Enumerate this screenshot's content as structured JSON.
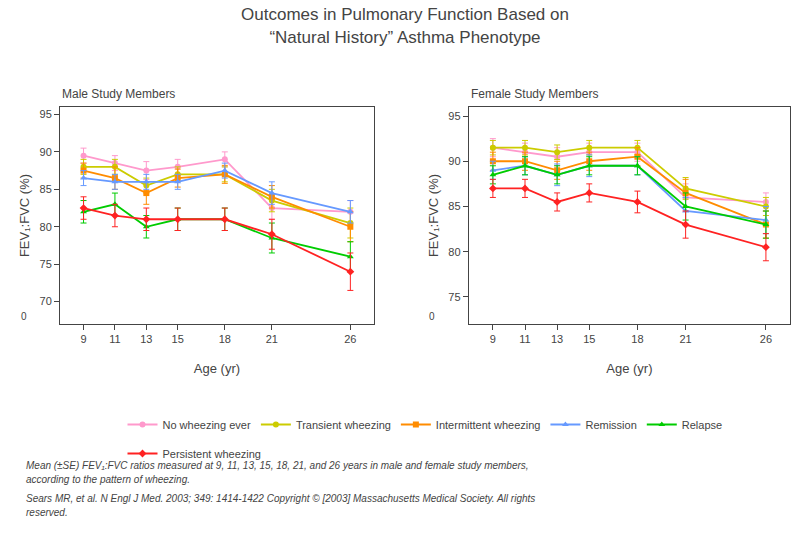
{
  "title": "Outcomes in Pulmonary Function Based on\n“Natural History” Asthma Phenotype",
  "annotations": [
    "Mean (±SE) FEV₁:FVC ratios measured at 9, 11, 13, 15, 18, 21, and 26 years in male and female study members,",
    "according to the pattern of wheezing.",
    "Sears MR, et al. N Engl J Med. 2003; 349: 1414-1422 Copyright © [2003] Massachusetts Medical Society. All rights",
    "reserved."
  ],
  "chart_data": [
    {
      "type": "line",
      "title": "Male Study Members",
      "xlabel": "Age (yr)",
      "ylabel": "FEV₁:FVC (%)",
      "x": [
        9,
        11,
        13,
        15,
        18,
        21,
        26
      ],
      "xlim": [
        7.5,
        27.5
      ],
      "xticks": [
        9,
        11,
        13,
        15,
        18,
        21,
        26
      ],
      "ylim": [
        67,
        96
      ],
      "yticks": [
        70,
        75,
        80,
        85,
        90,
        95
      ],
      "grid": false,
      "legend": "bottom",
      "annotations": [
        "0"
      ],
      "series": [
        {
          "name": "No wheezing ever",
          "color": "#FF99CC",
          "marker": "circle",
          "line_style": "solid",
          "values": [
            89.5,
            88.5,
            87.5,
            88.0,
            89.0,
            82.5,
            82.0
          ],
          "errors": [
            1.0,
            1.0,
            1.2,
            1.0,
            1.0,
            1.5,
            1.5
          ]
        },
        {
          "name": "Transient wheezing",
          "color": "#CCCC00",
          "marker": "circle",
          "line_style": "solid",
          "values": [
            88.0,
            88.0,
            85.5,
            87.0,
            87.0,
            83.5,
            80.5
          ],
          "errors": [
            1.0,
            1.0,
            1.0,
            1.0,
            1.0,
            1.5,
            2.0
          ]
        },
        {
          "name": "Intermittent wheezing",
          "color": "#FF8C00",
          "marker": "square",
          "line_style": "solid",
          "values": [
            87.5,
            86.5,
            84.5,
            86.5,
            87.0,
            84.0,
            80.0
          ],
          "errors": [
            1.0,
            1.5,
            1.5,
            1.2,
            1.2,
            1.5,
            2.0
          ]
        },
        {
          "name": "Remission",
          "color": "#6699FF",
          "marker": "triangle-up",
          "line_style": "solid",
          "values": [
            86.5,
            86.0,
            86.0,
            86.0,
            87.5,
            84.5,
            82.0
          ],
          "errors": [
            1.0,
            1.0,
            1.0,
            1.0,
            1.0,
            1.5,
            1.5
          ]
        },
        {
          "name": "Relapse",
          "color": "#00CC00",
          "marker": "triangle-up",
          "line_style": "solid",
          "values": [
            82.0,
            83.0,
            80.0,
            81.0,
            81.0,
            78.5,
            76.0
          ],
          "errors": [
            1.5,
            1.5,
            1.5,
            1.5,
            1.5,
            2.0,
            2.0
          ]
        },
        {
          "name": "Persistent wheezing",
          "color": "#FF2222",
          "marker": "diamond",
          "line_style": "solid",
          "values": [
            82.5,
            81.5,
            81.0,
            81.0,
            81.0,
            79.0,
            74.0
          ],
          "errors": [
            1.5,
            1.5,
            1.5,
            1.5,
            1.5,
            2.0,
            2.5
          ]
        }
      ]
    },
    {
      "type": "line",
      "title": "Female Study Members",
      "xlabel": "Age (yr)",
      "ylabel": "FEV₁:FVC (%)",
      "x": [
        9,
        11,
        13,
        15,
        18,
        21,
        26
      ],
      "xlim": [
        7.5,
        27.5
      ],
      "xticks": [
        9,
        11,
        13,
        15,
        18,
        21,
        26
      ],
      "ylim": [
        72,
        96
      ],
      "yticks": [
        75,
        80,
        85,
        90,
        95
      ],
      "grid": false,
      "legend": "bottom",
      "annotations": [
        "0"
      ],
      "series": [
        {
          "name": "No wheezing ever",
          "color": "#FF99CC",
          "marker": "circle",
          "line_style": "solid",
          "values": [
            91.5,
            91.0,
            90.5,
            91.0,
            91.0,
            86.0,
            85.5
          ],
          "errors": [
            1.0,
            1.0,
            1.0,
            1.0,
            1.0,
            1.5,
            1.0
          ]
        },
        {
          "name": "Transient wheezing",
          "color": "#CCCC00",
          "marker": "circle",
          "line_style": "solid",
          "values": [
            91.5,
            91.5,
            91.0,
            91.5,
            91.5,
            87.0,
            85.0
          ],
          "errors": [
            0.8,
            0.8,
            0.8,
            0.8,
            0.8,
            1.2,
            1.0
          ]
        },
        {
          "name": "Intermittent wheezing",
          "color": "#FF8C00",
          "marker": "square",
          "line_style": "solid",
          "values": [
            90.0,
            90.0,
            89.0,
            90.0,
            90.5,
            86.5,
            83.0
          ],
          "errors": [
            1.0,
            1.0,
            1.0,
            1.0,
            1.0,
            1.5,
            1.5
          ]
        },
        {
          "name": "Remission",
          "color": "#6699FF",
          "marker": "triangle-up",
          "line_style": "solid",
          "values": [
            89.0,
            89.5,
            88.5,
            89.5,
            89.5,
            84.5,
            83.5
          ],
          "errors": [
            1.0,
            1.0,
            1.2,
            1.2,
            1.0,
            1.5,
            1.5
          ]
        },
        {
          "name": "Relapse",
          "color": "#00CC00",
          "marker": "triangle-up",
          "line_style": "solid",
          "values": [
            88.5,
            89.5,
            88.5,
            89.5,
            89.5,
            85.0,
            83.0
          ],
          "errors": [
            1.0,
            1.0,
            1.0,
            1.0,
            1.0,
            1.5,
            1.5
          ]
        },
        {
          "name": "Persistent wheezing",
          "color": "#FF2222",
          "marker": "diamond",
          "line_style": "solid",
          "values": [
            87.0,
            87.0,
            85.5,
            86.5,
            85.5,
            83.0,
            80.5
          ],
          "errors": [
            1.0,
            1.0,
            1.0,
            1.0,
            1.2,
            1.5,
            1.5
          ]
        }
      ]
    }
  ]
}
